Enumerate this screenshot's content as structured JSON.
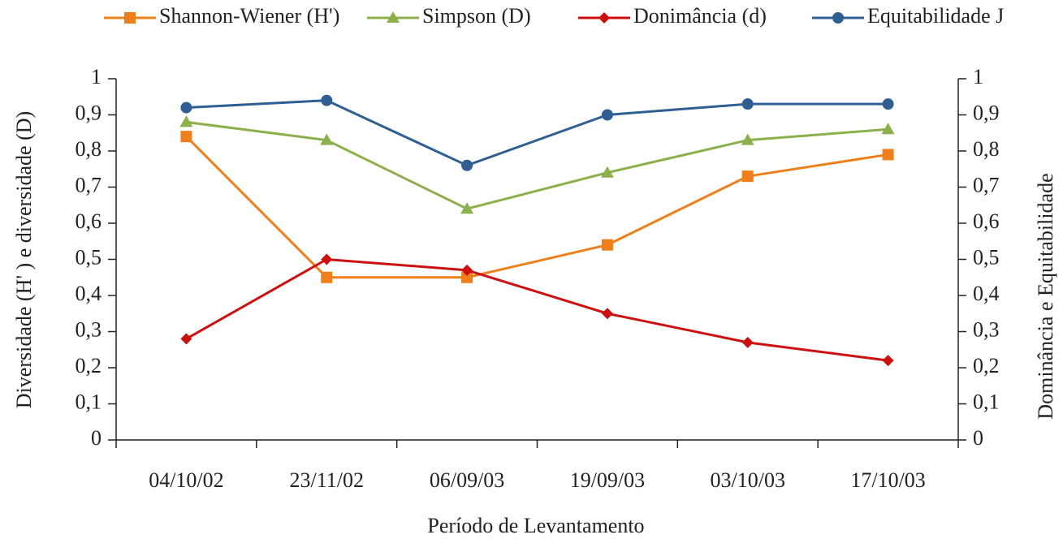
{
  "chart_data": {
    "type": "line",
    "x_label": "Período de Levantamento",
    "y_label": "Diversidade (H' ) e diversidade (D)",
    "y2_label": "Dominância e Equitabilidade",
    "categories": [
      "04/10/02",
      "23/11/02",
      "06/09/03",
      "19/09/03",
      "03/10/03",
      "17/10/03"
    ],
    "series": [
      {
        "name": "Shannon-Wiener (H')",
        "color": "#ee7f1a",
        "marker": "square",
        "values": [
          0.84,
          0.45,
          0.45,
          0.54,
          0.73,
          0.79
        ]
      },
      {
        "name": "Simpson (D)",
        "color": "#8cb04c",
        "marker": "triangle",
        "values": [
          0.88,
          0.83,
          0.64,
          0.74,
          0.83,
          0.86
        ]
      },
      {
        "name": "Donimância (d)",
        "color": "#cc1010",
        "marker": "diamond",
        "axis": "y2",
        "values": [
          0.28,
          0.5,
          0.47,
          0.35,
          0.27,
          0.22
        ]
      },
      {
        "name": "Equitabilidade J",
        "color": "#2f5e93",
        "marker": "circle",
        "axis": "y2",
        "values": [
          0.92,
          0.94,
          0.76,
          0.9,
          0.93,
          0.93
        ]
      }
    ],
    "ylim": [
      0,
      1
    ],
    "yticks": [
      0,
      {
        "value": 0.1,
        "label": "0,1"
      },
      {
        "value": 0.2,
        "label": "0,2"
      },
      {
        "value": 0.3,
        "label": "0,3"
      },
      {
        "value": 0.4,
        "label": "0,4"
      },
      {
        "value": 0.5,
        "label": "0,5"
      },
      {
        "value": 0.6,
        "label": "0,6"
      },
      {
        "value": 0.7,
        "label": "0,7"
      },
      {
        "value": 0.8,
        "label": "0,8"
      },
      {
        "value": 0.9,
        "label": "0,9"
      },
      1
    ],
    "y2lim": [
      0,
      1
    ],
    "y2ticks": [
      0,
      {
        "value": 0.1,
        "label": "0,1"
      },
      {
        "value": 0.2,
        "label": "0,2"
      },
      {
        "value": 0.3,
        "label": "0,3"
      },
      {
        "value": 0.4,
        "label": "0,4"
      },
      {
        "value": 0.5,
        "label": "0,5"
      },
      {
        "value": 0.6,
        "label": "0,6"
      },
      {
        "value": 0.7,
        "label": "0,7"
      },
      {
        "value": 0.8,
        "label": "0,8"
      },
      {
        "value": 0.9,
        "label": "0,9"
      },
      1
    ],
    "legend": "top"
  }
}
